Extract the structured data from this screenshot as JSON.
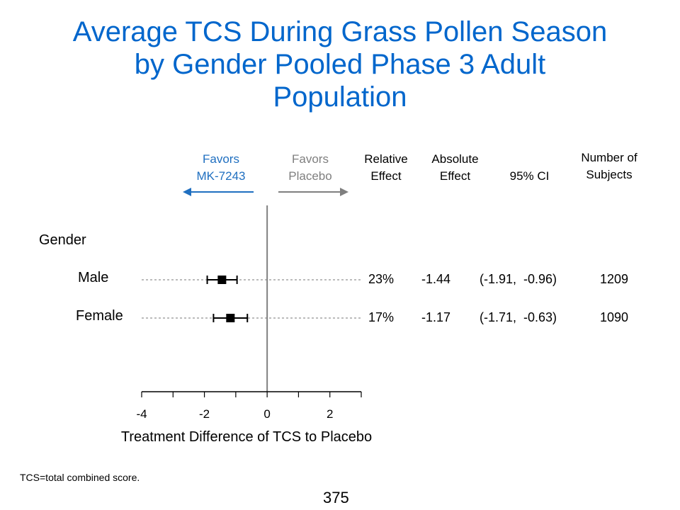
{
  "title": {
    "line1": "Average TCS During Grass Pollen Season",
    "line2": "by Gender Pooled Phase 3 Adult",
    "line3": "Population"
  },
  "headers": {
    "favors_left": {
      "line1": "Favors",
      "line2": "MK-7243"
    },
    "favors_right": {
      "line1": "Favors",
      "line2": "Placebo"
    },
    "relative": {
      "line1": "Relative",
      "line2": "Effect"
    },
    "absolute": {
      "line1": "Absolute",
      "line2": "Effect"
    },
    "ci": "95% CI",
    "n": {
      "line1": "Number of",
      "line2": "Subjects"
    }
  },
  "group_label": "Gender",
  "rows": [
    {
      "label": "Male",
      "relative": "23%",
      "absolute": "-1.44",
      "ci": "(-1.91,  -0.96)",
      "n": "1209"
    },
    {
      "label": "Female",
      "relative": "17%",
      "absolute": "-1.17",
      "ci": "(-1.71,  -0.63)",
      "n": "1090"
    }
  ],
  "footnote": "TCS=total combined score.",
  "page_number": "375",
  "colors": {
    "title": "#0066cc",
    "favors_left": "#1f6fc0",
    "favors_right": "#7f7f7f"
  },
  "chart_data": {
    "type": "forest",
    "xlabel": "Treatment Difference of TCS to Placebo",
    "xlim": [
      -4,
      3
    ],
    "xticks": [
      -4,
      -2,
      0,
      2
    ],
    "reference_line": 0,
    "series": [
      {
        "name": "Male",
        "estimate": -1.44,
        "ci_low": -1.91,
        "ci_high": -0.96
      },
      {
        "name": "Female",
        "estimate": -1.17,
        "ci_low": -1.71,
        "ci_high": -0.63
      }
    ]
  }
}
